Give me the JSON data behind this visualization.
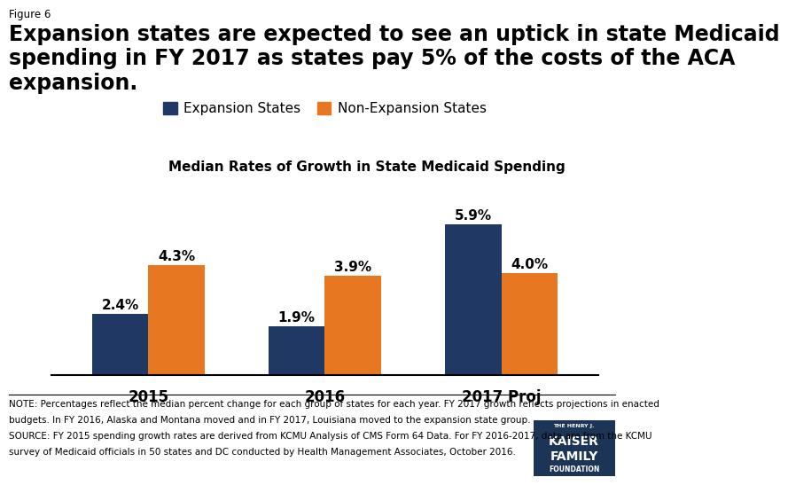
{
  "figure_label": "Figure 6",
  "title_line1": "Expansion states are expected to see an uptick in state Medicaid",
  "title_line2": "spending in FY 2017 as states pay 5% of the costs of the ACA",
  "title_line3": "expansion.",
  "subtitle": "Median Rates of Growth in State Medicaid Spending",
  "categories": [
    "2015",
    "2016",
    "2017 Proj"
  ],
  "expansion_values": [
    2.4,
    1.9,
    5.9
  ],
  "nonexpansion_values": [
    4.3,
    3.9,
    4.0
  ],
  "expansion_color": "#1f3864",
  "nonexpansion_color": "#e87722",
  "bar_width": 0.32,
  "ylim": [
    0,
    7
  ],
  "legend_labels": [
    "Expansion States",
    "Non-Expansion States"
  ],
  "note_line1": "NOTE: Percentages reflect the median percent change for each group of states for each year. FY 2017 growth reflects projections in enacted",
  "note_line2": "budgets. In FY 2016, Alaska and Montana moved and in FY 2017, Louisiana moved to the expansion state group.",
  "note_line3": "SOURCE: FY 2015 spending growth rates are derived from KCMU Analysis of CMS Form 64 Data. For FY 2016-2017, data are from the KCMU",
  "note_line4": "survey of Medicaid officials in 50 states and DC conducted by Health Management Associates, October 2016.",
  "label_fontsize": 11,
  "title_fontsize": 17,
  "subtitle_fontsize": 11,
  "note_fontsize": 7.5,
  "background_color": "#ffffff",
  "logo_color": "#1c3557"
}
